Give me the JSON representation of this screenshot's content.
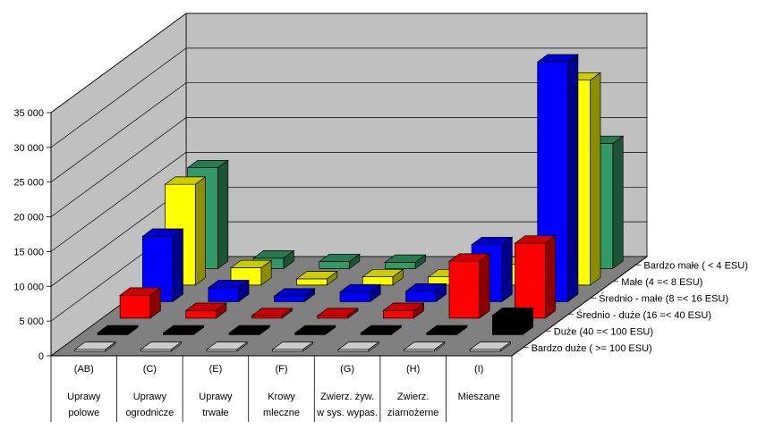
{
  "chart_data": {
    "type": "bar",
    "title": "",
    "xlabel": "",
    "ylabel": "",
    "ylim": [
      0,
      35000
    ],
    "yticks": [
      "0",
      "5 000",
      "10 000",
      "15 000",
      "20 000",
      "25 000",
      "30 000",
      "35 000"
    ],
    "grid": true,
    "legend_placement": "right",
    "categories": [
      {
        "code": "(AB)",
        "line1": "Uprawy",
        "line2": "polowe"
      },
      {
        "code": "(C)",
        "line1": "Uprawy",
        "line2": "ogrodnicze"
      },
      {
        "code": "(E)",
        "line1": "Uprawy",
        "line2": "trwałe"
      },
      {
        "code": "(F)",
        "line1": "Krowy",
        "line2": "mleczne"
      },
      {
        "code": "(G)",
        "line1": "Zwierz. żyw.",
        "line2": "w sys. wypas."
      },
      {
        "code": "(H)",
        "line1": "Zwierz.",
        "line2": "ziarnożerne"
      },
      {
        "code": "(I)",
        "line1": "Mieszane",
        "line2": ""
      }
    ],
    "series": [
      {
        "name": "Bardzo duże  ( >= 100 ESU)",
        "color": "#ffffff",
        "values": [
          50,
          50,
          50,
          50,
          50,
          50,
          50
        ]
      },
      {
        "name": "Duże  (40 =< 100 ESU)",
        "color": "#000000",
        "values": [
          200,
          100,
          100,
          100,
          100,
          100,
          2800
        ]
      },
      {
        "name": "Średnio - duże  (16 =< 40 ESU)",
        "color": "#ff0000",
        "values": [
          3300,
          1100,
          350,
          350,
          1100,
          8200,
          10800
        ]
      },
      {
        "name": "Średnio - małe  (8 =< 16 ESU)",
        "color": "#0000ff",
        "values": [
          9400,
          2000,
          800,
          1400,
          1500,
          8200,
          34500
        ]
      },
      {
        "name": "Małe  (4 =< 8 ESU)",
        "color": "#ffff00",
        "values": [
          14500,
          2500,
          900,
          1200,
          1200,
          3000,
          29500
        ]
      },
      {
        "name": "Bardzo małe  ( < 4 ESU)",
        "color": "#339966",
        "values": [
          14500,
          1500,
          1000,
          900,
          900,
          900,
          18000
        ]
      }
    ]
  }
}
